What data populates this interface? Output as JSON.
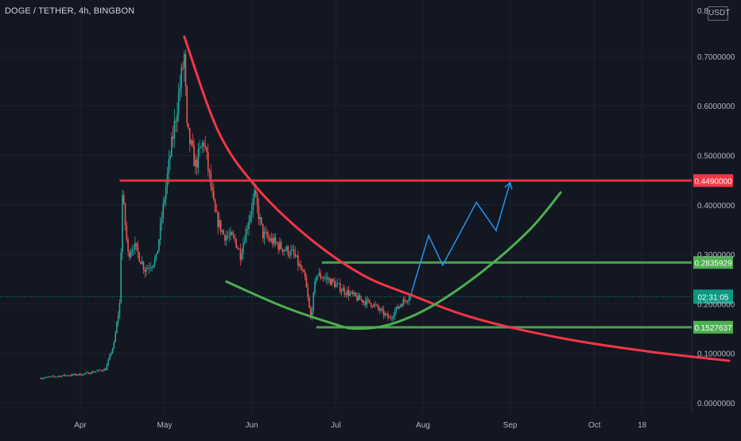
{
  "header": {
    "title": "DOGE / TETHER, 4h, BINGBON",
    "currency": "USDT"
  },
  "colors": {
    "background": "#131722",
    "candle_up": "#26a69a",
    "candle_down": "#ef5350",
    "red_line": "#f23645",
    "green_line": "#4caf50",
    "projection": "#2196f3",
    "axis_text": "#b2b5be",
    "current_price_badge": "#089981"
  },
  "chart_data": {
    "type": "candlestick",
    "symbol": "DOGE / TETHER",
    "interval": "4h",
    "exchange": "BINGBON",
    "x_ticks": [
      "Apr",
      "May",
      "Jun",
      "Jul",
      "Aug",
      "Sep",
      "Oct",
      "18"
    ],
    "y_ticks": [
      "0.7000000",
      "0.6000000",
      "0.5000000",
      "0.4000000",
      "0.3000000",
      "0.2000000",
      "0.1000000",
      "0.0000000"
    ],
    "y_top_tick_partial": "0.8",
    "ylim": [
      0,
      0.8
    ],
    "price_path": [
      {
        "date": "2021-03-18",
        "price": 0.05
      },
      {
        "date": "2021-03-26",
        "price": 0.055
      },
      {
        "date": "2021-04-02",
        "price": 0.058
      },
      {
        "date": "2021-04-10",
        "price": 0.068
      },
      {
        "date": "2021-04-13",
        "price": 0.12
      },
      {
        "date": "2021-04-15",
        "price": 0.2
      },
      {
        "date": "2021-04-16",
        "price": 0.42
      },
      {
        "date": "2021-04-18",
        "price": 0.3
      },
      {
        "date": "2021-04-20",
        "price": 0.32
      },
      {
        "date": "2021-04-24",
        "price": 0.27
      },
      {
        "date": "2021-04-28",
        "price": 0.29
      },
      {
        "date": "2021-05-03",
        "price": 0.5
      },
      {
        "date": "2021-05-06",
        "price": 0.62
      },
      {
        "date": "2021-05-08",
        "price": 0.7
      },
      {
        "date": "2021-05-09",
        "price": 0.55
      },
      {
        "date": "2021-05-12",
        "price": 0.48
      },
      {
        "date": "2021-05-15",
        "price": 0.53
      },
      {
        "date": "2021-05-19",
        "price": 0.38
      },
      {
        "date": "2021-05-22",
        "price": 0.34
      },
      {
        "date": "2021-05-26",
        "price": 0.33
      },
      {
        "date": "2021-05-28",
        "price": 0.3
      },
      {
        "date": "2021-06-02",
        "price": 0.42
      },
      {
        "date": "2021-06-05",
        "price": 0.34
      },
      {
        "date": "2021-06-10",
        "price": 0.32
      },
      {
        "date": "2021-06-16",
        "price": 0.3
      },
      {
        "date": "2021-06-20",
        "price": 0.25
      },
      {
        "date": "2021-06-22",
        "price": 0.17
      },
      {
        "date": "2021-06-24",
        "price": 0.26
      },
      {
        "date": "2021-06-28",
        "price": 0.25
      },
      {
        "date": "2021-07-03",
        "price": 0.23
      },
      {
        "date": "2021-07-09",
        "price": 0.21
      },
      {
        "date": "2021-07-14",
        "price": 0.2
      },
      {
        "date": "2021-07-20",
        "price": 0.17
      },
      {
        "date": "2021-07-24",
        "price": 0.2
      },
      {
        "date": "2021-07-28",
        "price": 0.22
      }
    ],
    "horizontal_levels": [
      {
        "price": 0.449,
        "label": "0.4490000",
        "color": "#f23645",
        "from": "2021-04-15"
      },
      {
        "price": 0.2835929,
        "label": "0.2835929",
        "color": "#4caf50",
        "from": "2021-06-26"
      },
      {
        "price": 0.1527637,
        "label": "0.1527637",
        "color": "#4caf50",
        "from": "2021-06-24"
      }
    ],
    "current_price": {
      "price": 0.2144,
      "label": "02:31:05"
    },
    "red_curve": [
      {
        "date": "2021-05-08",
        "price": 0.74
      },
      {
        "date": "2021-05-20",
        "price": 0.55
      },
      {
        "date": "2021-06-02",
        "price": 0.44
      },
      {
        "date": "2021-06-20",
        "price": 0.34
      },
      {
        "date": "2021-07-10",
        "price": 0.26
      },
      {
        "date": "2021-07-29",
        "price": 0.215
      },
      {
        "date": "2021-08-20",
        "price": 0.17
      },
      {
        "date": "2021-09-20",
        "price": 0.13
      },
      {
        "date": "2021-10-20",
        "price": 0.104
      },
      {
        "date": "2021-11-18",
        "price": 0.085
      }
    ],
    "green_curve": [
      {
        "date": "2021-05-23",
        "price": 0.245
      },
      {
        "date": "2021-06-12",
        "price": 0.195
      },
      {
        "date": "2021-06-30",
        "price": 0.16
      },
      {
        "date": "2021-07-08",
        "price": 0.15
      },
      {
        "date": "2021-07-20",
        "price": 0.158
      },
      {
        "date": "2021-08-04",
        "price": 0.195
      },
      {
        "date": "2021-08-22",
        "price": 0.265
      },
      {
        "date": "2021-09-08",
        "price": 0.35
      },
      {
        "date": "2021-09-19",
        "price": 0.425
      }
    ],
    "projection": [
      {
        "date": "2021-07-28",
        "price": 0.225
      },
      {
        "date": "2021-08-03",
        "price": 0.338
      },
      {
        "date": "2021-08-08",
        "price": 0.278
      },
      {
        "date": "2021-08-20",
        "price": 0.405
      },
      {
        "date": "2021-08-27",
        "price": 0.348
      },
      {
        "date": "2021-09-01",
        "price": 0.445
      }
    ]
  }
}
